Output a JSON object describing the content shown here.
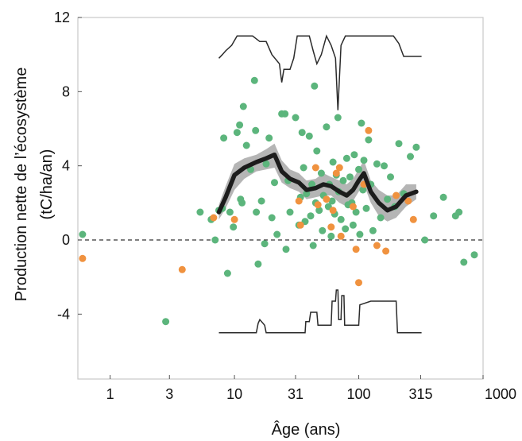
{
  "chart_data": {
    "type": "scatter",
    "title": "",
    "xlabel": "Âge (ans)",
    "ylabel": [
      "Production nette de l’écosystème",
      "(tC/ha/an)"
    ],
    "x_scale": "log",
    "xlim": [
      0.55,
      1000
    ],
    "ylim": [
      -7.5,
      12
    ],
    "x_ticks": [
      {
        "value": 1,
        "label": "1"
      },
      {
        "value": 3,
        "label": "3"
      },
      {
        "value": 10,
        "label": "10"
      },
      {
        "value": 31,
        "label": "31"
      },
      {
        "value": 100,
        "label": "100"
      },
      {
        "value": 315,
        "label": "315"
      },
      {
        "value": 1000,
        "label": "1000"
      }
    ],
    "y_ticks": [
      {
        "value": -4,
        "label": "-4"
      },
      {
        "value": 0,
        "label": "0"
      },
      {
        "value": 4,
        "label": "4"
      },
      {
        "value": 8,
        "label": "8"
      },
      {
        "value": 12,
        "label": "12"
      }
    ],
    "grid": false,
    "reference_line": {
      "y": 0,
      "style": "dashed"
    },
    "colors": {
      "green_points": "#5cb57c",
      "orange_points": "#f0923f",
      "mean_line": "#1c1c1c",
      "band": "#a8a8a8",
      "frame": "#c8c8c8",
      "histogram": "#2b2b2b"
    },
    "series": [
      {
        "color": "green",
        "points": [
          [
            0.6,
            0.3
          ],
          [
            2.8,
            -4.4
          ],
          [
            5.3,
            1.5
          ],
          [
            6.5,
            1.1
          ],
          [
            7.0,
            0.0
          ],
          [
            7.5,
            1.6
          ],
          [
            8.0,
            1.7
          ],
          [
            8.2,
            5.5
          ],
          [
            8.8,
            -1.8
          ],
          [
            9.2,
            1.5
          ],
          [
            9.8,
            0.7
          ],
          [
            10.5,
            5.8
          ],
          [
            11.0,
            6.2
          ],
          [
            11.2,
            2.2
          ],
          [
            11.5,
            2.0
          ],
          [
            11.8,
            7.2
          ],
          [
            12.5,
            5.1
          ],
          [
            13.5,
            3.8
          ],
          [
            14.5,
            8.6
          ],
          [
            14.8,
            5.9
          ],
          [
            15.0,
            1.5
          ],
          [
            15.5,
            -1.3
          ],
          [
            16.5,
            2.1
          ],
          [
            17.5,
            -0.2
          ],
          [
            18.0,
            4.1
          ],
          [
            19.0,
            5.5
          ],
          [
            20.0,
            1.2
          ],
          [
            21.0,
            3.1
          ],
          [
            22.0,
            0.3
          ],
          [
            24.0,
            6.8
          ],
          [
            25.5,
            6.8
          ],
          [
            26.0,
            -0.5
          ],
          [
            27.0,
            3.2
          ],
          [
            28.0,
            1.5
          ],
          [
            31.0,
            6.6
          ],
          [
            33.0,
            0.8
          ],
          [
            34.0,
            2.3
          ],
          [
            35.0,
            5.8
          ],
          [
            36.0,
            3.9
          ],
          [
            37.0,
            1.0
          ],
          [
            38.0,
            2.5
          ],
          [
            40.0,
            5.6
          ],
          [
            41.0,
            1.3
          ],
          [
            42.0,
            3.0
          ],
          [
            43.0,
            -0.3
          ],
          [
            44.0,
            8.3
          ],
          [
            45.0,
            2.0
          ],
          [
            46.0,
            4.8
          ],
          [
            48.0,
            1.6
          ],
          [
            50.0,
            3.6
          ],
          [
            51.0,
            0.5
          ],
          [
            52.0,
            2.4
          ],
          [
            55.0,
            6.1
          ],
          [
            57.0,
            1.8
          ],
          [
            58.0,
            3.0
          ],
          [
            60.0,
            0.2
          ],
          [
            61.0,
            2.1
          ],
          [
            62.0,
            4.2
          ],
          [
            64.0,
            1.4
          ],
          [
            66.0,
            3.5
          ],
          [
            68.0,
            6.6
          ],
          [
            69.0,
            2.6
          ],
          [
            72.0,
            1.1
          ],
          [
            75.0,
            3.2
          ],
          [
            78.0,
            0.6
          ],
          [
            80.0,
            4.4
          ],
          [
            82.0,
            1.9
          ],
          [
            85.0,
            3.4
          ],
          [
            88.0,
            2.0
          ],
          [
            90.0,
            0.8
          ],
          [
            92.0,
            4.6
          ],
          [
            95.0,
            1.5
          ],
          [
            100.0,
            3.8
          ],
          [
            102.0,
            0.3
          ],
          [
            105.0,
            6.3
          ],
          [
            108.0,
            2.7
          ],
          [
            110.0,
            4.3
          ],
          [
            115.0,
            1.7
          ],
          [
            120.0,
            5.4
          ],
          [
            125.0,
            3.0
          ],
          [
            130.0,
            0.5
          ],
          [
            140.0,
            4.1
          ],
          [
            150.0,
            1.2
          ],
          [
            160.0,
            4.0
          ],
          [
            170.0,
            2.2
          ],
          [
            180.0,
            3.4
          ],
          [
            195.0,
            1.8
          ],
          [
            210.0,
            5.2
          ],
          [
            230.0,
            2.5
          ],
          [
            260.0,
            4.5
          ],
          [
            290.0,
            5.0
          ],
          [
            340.0,
            0.0
          ],
          [
            400.0,
            1.3
          ],
          [
            480.0,
            2.3
          ],
          [
            600.0,
            1.3
          ],
          [
            640.0,
            1.5
          ],
          [
            700.0,
            -1.2
          ],
          [
            850.0,
            -0.8
          ]
        ]
      },
      {
        "color": "orange",
        "points": [
          [
            0.6,
            -1.0
          ],
          [
            3.8,
            -1.6
          ],
          [
            6.8,
            1.2
          ],
          [
            10.0,
            1.1
          ],
          [
            33.0,
            2.1
          ],
          [
            34.0,
            0.8
          ],
          [
            45.0,
            3.9
          ],
          [
            47.0,
            1.9
          ],
          [
            55.0,
            2.2
          ],
          [
            60.0,
            0.7
          ],
          [
            62.0,
            1.6
          ],
          [
            66.0,
            3.6
          ],
          [
            70.0,
            3.9
          ],
          [
            72.0,
            0.2
          ],
          [
            90.0,
            1.8
          ],
          [
            95.0,
            -0.5
          ],
          [
            100.0,
            -2.3
          ],
          [
            110.0,
            3.0
          ],
          [
            120.0,
            5.9
          ],
          [
            140.0,
            -0.3
          ],
          [
            165.0,
            -0.6
          ],
          [
            200.0,
            2.4
          ],
          [
            250.0,
            2.1
          ],
          [
            275.0,
            1.1
          ]
        ]
      }
    ],
    "mean_line": {
      "x": [
        7.5,
        8.5,
        10.0,
        12.0,
        15.0,
        18.0,
        21.0,
        24.0,
        28.0,
        33.0,
        38.0,
        45.0,
        52.0,
        60.0,
        70.0,
        80.0,
        90.0,
        100.0,
        110.0,
        125.0,
        145.0,
        170.0,
        200.0,
        240.0,
        290.0
      ],
      "y": [
        1.5,
        2.3,
        3.5,
        3.9,
        4.2,
        4.4,
        4.6,
        3.7,
        3.3,
        3.1,
        2.7,
        2.8,
        3.0,
        2.9,
        2.6,
        2.4,
        2.7,
        3.2,
        3.6,
        2.6,
        2.0,
        1.6,
        1.8,
        2.4,
        2.6
      ]
    },
    "band": {
      "x": [
        7.5,
        8.5,
        10.0,
        12.0,
        15.0,
        18.0,
        21.0,
        24.0,
        28.0,
        33.0,
        38.0,
        45.0,
        52.0,
        60.0,
        70.0,
        80.0,
        90.0,
        100.0,
        110.0,
        125.0,
        145.0,
        170.0,
        200.0,
        240.0,
        290.0
      ],
      "lower": [
        1.1,
        1.7,
        2.7,
        3.3,
        3.7,
        3.8,
        3.9,
        3.1,
        2.8,
        2.6,
        2.2,
        2.3,
        2.4,
        2.4,
        2.0,
        1.8,
        2.1,
        2.6,
        3.0,
        2.0,
        1.3,
        1.0,
        1.2,
        1.8,
        2.2
      ],
      "upper": [
        1.9,
        2.9,
        4.1,
        4.4,
        4.6,
        4.9,
        5.2,
        4.3,
        3.8,
        3.6,
        3.2,
        3.3,
        3.6,
        3.4,
        3.2,
        3.0,
        3.3,
        3.8,
        4.3,
        3.2,
        2.7,
        2.4,
        2.4,
        3.0,
        3.0
      ]
    },
    "histogram_top": [
      [
        7.5,
        9.8
      ],
      [
        8.0,
        10.0
      ],
      [
        8.5,
        10.2
      ],
      [
        9.5,
        10.5
      ],
      [
        10.5,
        11.0
      ],
      [
        14.0,
        11.0
      ],
      [
        16.0,
        10.7
      ],
      [
        18.0,
        10.7
      ],
      [
        20.0,
        10.0
      ],
      [
        23.0,
        9.5
      ],
      [
        24.0,
        8.5
      ],
      [
        25.0,
        9.2
      ],
      [
        28.0,
        9.2
      ],
      [
        30.0,
        9.8
      ],
      [
        32.0,
        11.0
      ],
      [
        40.0,
        11.0
      ],
      [
        43.0,
        10.2
      ],
      [
        46.0,
        9.5
      ],
      [
        50.0,
        10.0
      ],
      [
        55.0,
        11.0
      ],
      [
        60.0,
        10.5
      ],
      [
        65.0,
        9.8
      ],
      [
        68.0,
        7.0
      ],
      [
        72.0,
        10.5
      ],
      [
        78.0,
        11.0
      ],
      [
        190.0,
        11.0
      ],
      [
        210.0,
        10.6
      ],
      [
        230.0,
        9.9
      ],
      [
        320.0,
        9.9
      ]
    ],
    "histogram_bottom": [
      [
        7.5,
        -5.0
      ],
      [
        15.0,
        -5.0
      ],
      [
        15.5,
        -4.5
      ],
      [
        16.0,
        -4.3
      ],
      [
        17.5,
        -4.6
      ],
      [
        18.0,
        -5.0
      ],
      [
        37.0,
        -5.0
      ],
      [
        37.5,
        -4.4
      ],
      [
        40.0,
        -4.4
      ],
      [
        41.0,
        -3.9
      ],
      [
        46.0,
        -3.9
      ],
      [
        47.0,
        -4.6
      ],
      [
        60.0,
        -4.6
      ],
      [
        61.0,
        -3.3
      ],
      [
        65.0,
        -3.3
      ],
      [
        66.0,
        -2.7
      ],
      [
        68.0,
        -2.7
      ],
      [
        69.0,
        -4.3
      ],
      [
        72.0,
        -4.3
      ],
      [
        73.0,
        -3.0
      ],
      [
        76.0,
        -3.0
      ],
      [
        77.0,
        -4.6
      ],
      [
        100.0,
        -4.6
      ],
      [
        102.0,
        -3.5
      ],
      [
        125.0,
        -3.3
      ],
      [
        200.0,
        -3.3
      ],
      [
        205.0,
        -5.0
      ],
      [
        320.0,
        -5.0
      ]
    ]
  }
}
